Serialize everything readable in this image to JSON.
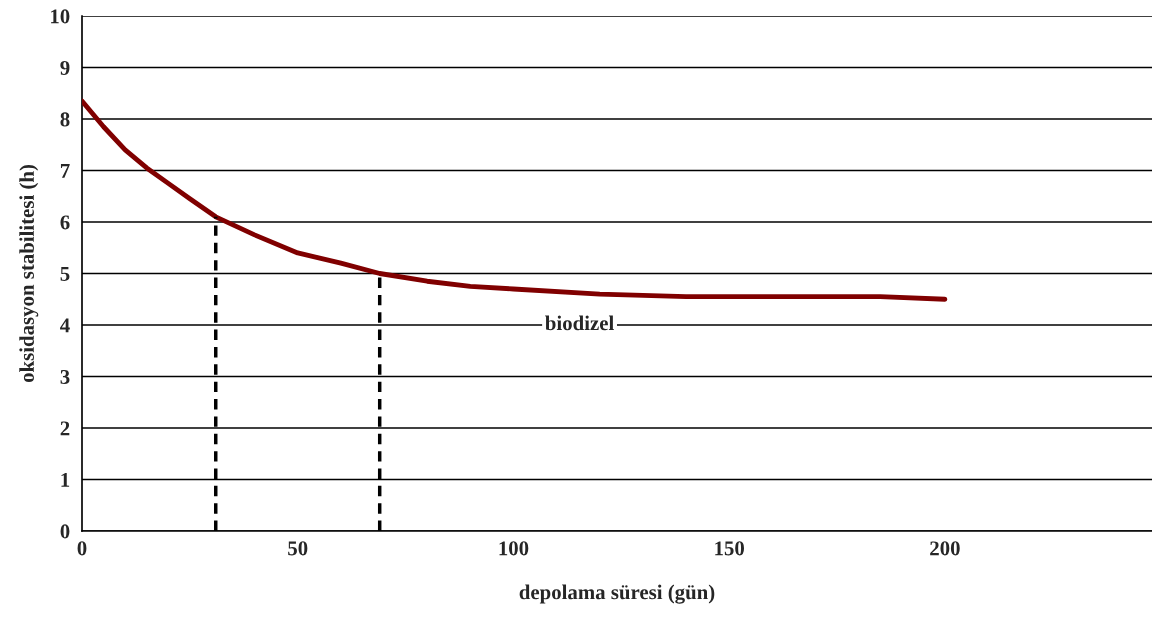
{
  "chart_data": {
    "type": "line",
    "xlabel": "depolama süresi (gün)",
    "ylabel": "oksidasyon stabilitesi (h)",
    "xlim": [
      0,
      248
    ],
    "xticks": [
      0,
      50,
      100,
      150,
      200
    ],
    "ylim": [
      0,
      10
    ],
    "yticks": [
      0,
      1,
      2,
      3,
      4,
      5,
      6,
      7,
      8,
      9,
      10
    ],
    "grid": "y",
    "series": [
      {
        "color": "#800000",
        "line_style": "solid",
        "x": [
          0,
          5,
          10,
          15,
          20,
          25,
          31,
          40,
          50,
          60,
          69,
          80,
          90,
          100,
          120,
          140,
          160,
          185,
          200
        ],
        "values": [
          8.35,
          7.85,
          7.4,
          7.05,
          6.75,
          6.45,
          6.1,
          5.75,
          5.4,
          5.2,
          5.0,
          4.85,
          4.75,
          4.7,
          4.6,
          4.55,
          4.55,
          4.55,
          4.5
        ]
      },
      {
        "color": "#000000",
        "line_style": "dashed",
        "x": [
          31,
          31
        ],
        "values": [
          0,
          6.1
        ]
      },
      {
        "color": "#000000",
        "line_style": "dashed",
        "x": [
          69,
          69
        ],
        "values": [
          0,
          5.0
        ]
      }
    ],
    "annotations": [
      "biodizel"
    ]
  }
}
